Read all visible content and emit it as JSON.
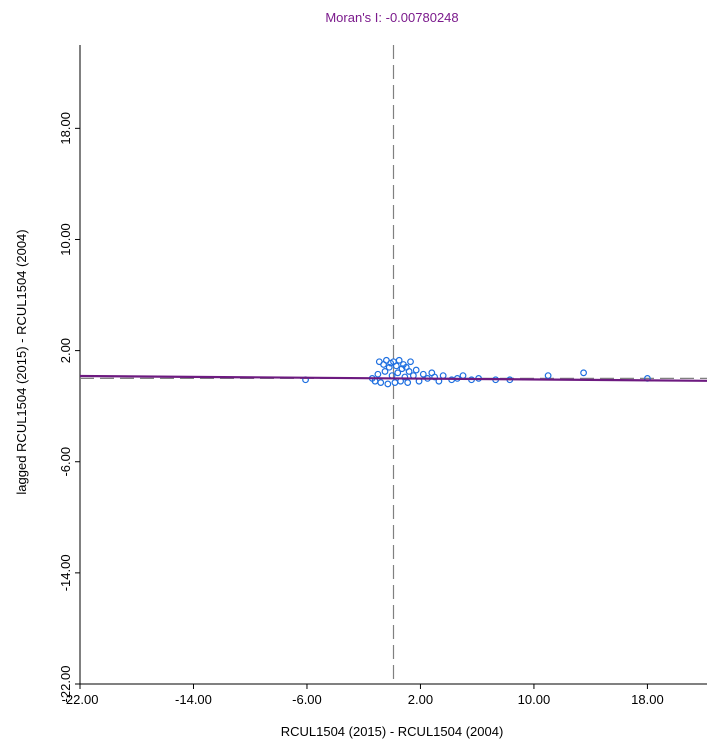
{
  "chart_data": {
    "type": "scatter",
    "title": "Moran's I: -0.00780248",
    "xlabel": "RCUL1504 (2015) - RCUL1504 (2004)",
    "ylabel": "lagged RCUL1504 (2015) - RCUL1504 (2004)",
    "xlim": [
      -22.0,
      22.2
    ],
    "ylim": [
      -22.0,
      24.0
    ],
    "x_ticks": [
      -22.0,
      -14.0,
      -6.0,
      2.0,
      10.0,
      18.0
    ],
    "y_ticks": [
      -22.0,
      -14.0,
      -6.0,
      2.0,
      10.0,
      18.0
    ],
    "x_tick_labels": [
      "-22.00",
      "-14.00",
      "-6.00",
      "2.00",
      "10.00",
      "18.00"
    ],
    "y_tick_labels": [
      "-22.00",
      "-14.00",
      "-6.00",
      "2.00",
      "10.00",
      "18.00"
    ],
    "mean_x": 0.1,
    "mean_y": 0.0,
    "regression": {
      "slope": -0.0078,
      "intercept": 0.0
    },
    "points": [
      [
        -6.1,
        -0.1
      ],
      [
        -1.4,
        0.0
      ],
      [
        -1.2,
        -0.2
      ],
      [
        -1.0,
        0.3
      ],
      [
        -0.9,
        1.2
      ],
      [
        -0.8,
        -0.3
      ],
      [
        -0.6,
        1.0
      ],
      [
        -0.5,
        0.5
      ],
      [
        -0.4,
        1.3
      ],
      [
        -0.3,
        -0.4
      ],
      [
        -0.2,
        0.8
      ],
      [
        -0.1,
        1.1
      ],
      [
        0.0,
        0.2
      ],
      [
        0.1,
        1.2
      ],
      [
        0.2,
        -0.3
      ],
      [
        0.3,
        0.9
      ],
      [
        0.4,
        0.4
      ],
      [
        0.5,
        1.3
      ],
      [
        0.6,
        -0.2
      ],
      [
        0.7,
        0.7
      ],
      [
        0.8,
        1.0
      ],
      [
        0.9,
        0.1
      ],
      [
        1.0,
        0.8
      ],
      [
        1.1,
        -0.3
      ],
      [
        1.2,
        0.5
      ],
      [
        1.3,
        1.2
      ],
      [
        1.5,
        0.2
      ],
      [
        1.7,
        0.6
      ],
      [
        1.9,
        -0.2
      ],
      [
        2.2,
        0.3
      ],
      [
        2.5,
        0.0
      ],
      [
        2.8,
        0.4
      ],
      [
        3.0,
        0.1
      ],
      [
        3.3,
        -0.2
      ],
      [
        3.6,
        0.2
      ],
      [
        4.2,
        -0.1
      ],
      [
        4.6,
        0.0
      ],
      [
        5.0,
        0.2
      ],
      [
        5.6,
        -0.1
      ],
      [
        6.1,
        0.0
      ],
      [
        7.3,
        -0.1
      ],
      [
        8.3,
        -0.1
      ],
      [
        11.0,
        0.2
      ],
      [
        13.5,
        0.4
      ],
      [
        18.0,
        0.0
      ]
    ]
  },
  "colors": {
    "title": "#7b1a8c",
    "regression_line": "#6d1a80",
    "points": "#1e6fe0",
    "mean_line": "#808080",
    "axes": "#000000",
    "background": "#ffffff"
  }
}
